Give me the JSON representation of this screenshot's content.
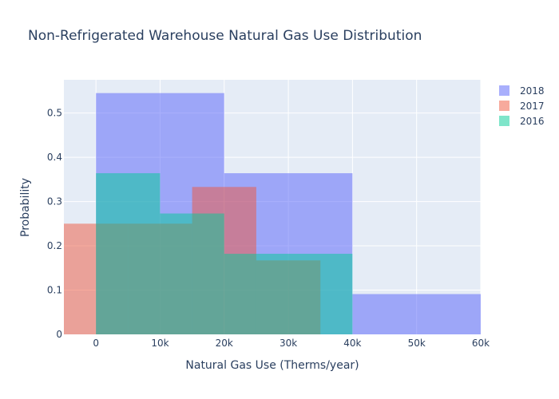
{
  "chart_data": {
    "type": "histogram",
    "title": "Non-Refrigerated Warehouse Natural Gas Use Distribution",
    "xlabel": "Natural Gas Use (Therms/year)",
    "ylabel": "Probability",
    "xlim": [
      -5000,
      60000
    ],
    "ylim": [
      0,
      0.575
    ],
    "x_ticks": [
      {
        "value": 0,
        "label": "0"
      },
      {
        "value": 10000,
        "label": "10k"
      },
      {
        "value": 20000,
        "label": "20k"
      },
      {
        "value": 30000,
        "label": "30k"
      },
      {
        "value": 40000,
        "label": "40k"
      },
      {
        "value": 50000,
        "label": "50k"
      },
      {
        "value": 60000,
        "label": "60k"
      }
    ],
    "y_ticks": [
      {
        "value": 0,
        "label": "0"
      },
      {
        "value": 0.1,
        "label": "0.1"
      },
      {
        "value": 0.2,
        "label": "0.2"
      },
      {
        "value": 0.3,
        "label": "0.3"
      },
      {
        "value": 0.4,
        "label": "0.4"
      },
      {
        "value": 0.5,
        "label": "0.5"
      }
    ],
    "grid": true,
    "legend_position": "top-right",
    "series": [
      {
        "name": "2018",
        "color": "#636efa",
        "opacity": 0.55,
        "bins": [
          {
            "x0": 0,
            "x1": 20000,
            "y": 0.545
          },
          {
            "x0": 20000,
            "x1": 40000,
            "y": 0.364
          },
          {
            "x0": 40000,
            "x1": 60000,
            "y": 0.091
          }
        ]
      },
      {
        "name": "2017",
        "color": "#ef553b",
        "opacity": 0.5,
        "bins": [
          {
            "x0": -5000,
            "x1": 5000,
            "y": 0.25
          },
          {
            "x0": 5000,
            "x1": 15000,
            "y": 0.25
          },
          {
            "x0": 15000,
            "x1": 25000,
            "y": 0.333
          },
          {
            "x0": 25000,
            "x1": 35000,
            "y": 0.167
          }
        ]
      },
      {
        "name": "2016",
        "color": "#00cc96",
        "opacity": 0.5,
        "bins": [
          {
            "x0": 0,
            "x1": 10000,
            "y": 0.364
          },
          {
            "x0": 10000,
            "x1": 20000,
            "y": 0.273
          },
          {
            "x0": 20000,
            "x1": 30000,
            "y": 0.182
          },
          {
            "x0": 30000,
            "x1": 40000,
            "y": 0.182
          }
        ]
      }
    ],
    "legend_order": [
      "2018",
      "2017",
      "2016"
    ]
  }
}
